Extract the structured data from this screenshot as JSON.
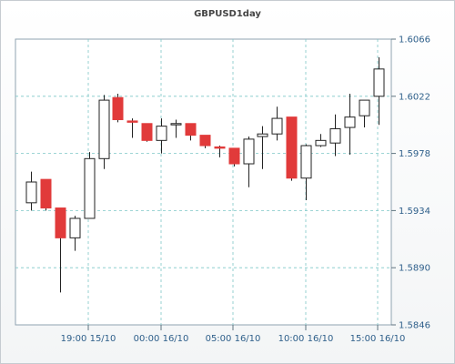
{
  "chart_data": {
    "type": "candlestick",
    "title": "GBPUSD1day",
    "xlabel": "",
    "ylabel": "",
    "y_ticks": [
      "1.6066",
      "1.6022",
      "1.5978",
      "1.5934",
      "1.5890",
      "1.5846"
    ],
    "ylim": [
      1.5846,
      1.6066
    ],
    "x_ticks": [
      "19:00 15/10",
      "00:00 16/10",
      "05:00 16/10",
      "10:00 16/10",
      "15:00 16/10"
    ],
    "candles": [
      {
        "open": 1.594,
        "high": 1.5964,
        "low": 1.5934,
        "close": 1.5956
      },
      {
        "open": 1.5958,
        "high": 1.5958,
        "low": 1.5934,
        "close": 1.5936
      },
      {
        "open": 1.5936,
        "high": 1.5936,
        "low": 1.5871,
        "close": 1.5913
      },
      {
        "open": 1.5913,
        "high": 1.593,
        "low": 1.5903,
        "close": 1.5928
      },
      {
        "open": 1.5928,
        "high": 1.5979,
        "low": 1.5928,
        "close": 1.5974
      },
      {
        "open": 1.5974,
        "high": 1.6023,
        "low": 1.5966,
        "close": 1.6019
      },
      {
        "open": 1.6021,
        "high": 1.6024,
        "low": 1.6002,
        "close": 1.6004
      },
      {
        "open": 1.6003,
        "high": 1.6005,
        "low": 1.599,
        "close": 1.6002
      },
      {
        "open": 1.6001,
        "high": 1.6001,
        "low": 1.5987,
        "close": 1.5988
      },
      {
        "open": 1.5988,
        "high": 1.6005,
        "low": 1.5978,
        "close": 1.5999
      },
      {
        "open": 1.6,
        "high": 1.6004,
        "low": 1.599,
        "close": 1.6001
      },
      {
        "open": 1.6001,
        "high": 1.6001,
        "low": 1.5988,
        "close": 1.5992
      },
      {
        "open": 1.5992,
        "high": 1.5992,
        "low": 1.5982,
        "close": 1.5984
      },
      {
        "open": 1.5983,
        "high": 1.5984,
        "low": 1.5975,
        "close": 1.5982
      },
      {
        "open": 1.5982,
        "high": 1.5982,
        "low": 1.5968,
        "close": 1.597
      },
      {
        "open": 1.597,
        "high": 1.5991,
        "low": 1.5952,
        "close": 1.5989
      },
      {
        "open": 1.5991,
        "high": 1.5999,
        "low": 1.5966,
        "close": 1.5993
      },
      {
        "open": 1.5993,
        "high": 1.6014,
        "low": 1.5988,
        "close": 1.6005
      },
      {
        "open": 1.6006,
        "high": 1.6006,
        "low": 1.5957,
        "close": 1.5959
      },
      {
        "open": 1.5959,
        "high": 1.5985,
        "low": 1.5942,
        "close": 1.5984
      },
      {
        "open": 1.5984,
        "high": 1.5993,
        "low": 1.5983,
        "close": 1.5988
      },
      {
        "open": 1.5986,
        "high": 1.6008,
        "low": 1.5976,
        "close": 1.5997
      },
      {
        "open": 1.5998,
        "high": 1.6024,
        "low": 1.5977,
        "close": 1.6006
      },
      {
        "open": 1.6007,
        "high": 1.6018,
        "low": 1.5998,
        "close": 1.6019
      },
      {
        "open": 1.6022,
        "high": 1.6052,
        "low": 1.6,
        "close": 1.6043
      }
    ],
    "up_color": "#ffffff",
    "down_color": "#e13a3a",
    "grid": true,
    "grid_color": "#7ec7c7"
  }
}
